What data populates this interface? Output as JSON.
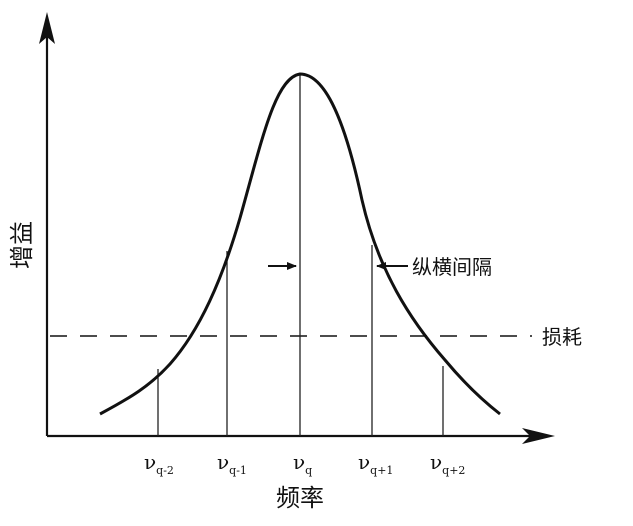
{
  "axes": {
    "x_label": "频率",
    "y_label": "增益"
  },
  "annotations": {
    "mode_spacing": "纵横间隔",
    "loss": "损耗"
  },
  "frequency_marks": [
    {
      "base": "ν",
      "sub": "q-2"
    },
    {
      "base": "ν",
      "sub": "q-1"
    },
    {
      "base": "ν",
      "sub": "q"
    },
    {
      "base": "ν",
      "sub": "q+1"
    },
    {
      "base": "ν",
      "sub": "q+2"
    }
  ]
}
